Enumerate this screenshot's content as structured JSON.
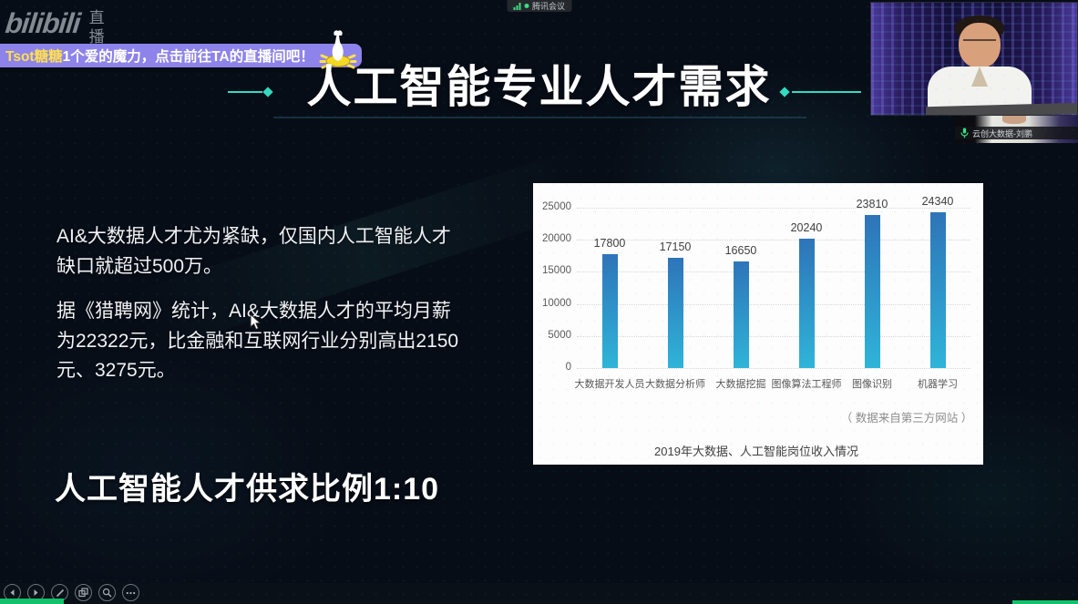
{
  "colors": {
    "accent_teal": "#35d9c0",
    "banner_purple": "#8d83ea",
    "banner_highlight_text": "#ffdf4f",
    "progress_green": "#12c26a",
    "meeting_green": "#3ddc84",
    "slide_background": "#070d17",
    "chart_background": "#fdfdfd"
  },
  "top_bar": {
    "meeting_label": "腾讯会议"
  },
  "bili": {
    "logo_text": "bilibili",
    "vertical_label_1": "直",
    "vertical_label_2": "播"
  },
  "banner": {
    "highlight": "Tsot糖糖",
    "message": "1个爱的魔力，点击前往TA的直播间吧！"
  },
  "slide": {
    "title": "人工智能专业人才需求",
    "paragraphs": [
      "AI&大数据人才尤为紧缺，仅国内人工智能人才缺口就超过500万。",
      "据《猎聘网》统计，AI&大数据人才的平均月薪为22322元，比金融和互联网行业分别高出2150元、3275元。"
    ],
    "footer": "人工智能人才供求比例1:10"
  },
  "chart_data": {
    "type": "bar",
    "categories": [
      "大数据开发人员",
      "大数据分析师",
      "大数据挖掘",
      "图像算法工程师",
      "图像识别",
      "机器学习"
    ],
    "values": [
      17800,
      17150,
      16650,
      20240,
      23810,
      24340
    ],
    "title": "2019年大数据、人工智能岗位收入情况",
    "source_note": "（ 数据来自第三方网站 ）",
    "xlabel": "",
    "ylabel": "",
    "yticks": [
      0,
      5000,
      10000,
      15000,
      20000,
      25000
    ],
    "ylim": [
      0,
      25000
    ],
    "grid": true,
    "legend": "none",
    "bar_color_top": "#2e74b8",
    "bar_color_bottom": "#2fb4d9"
  },
  "webcam": {
    "nametag": "云创大数据-刘鹏"
  },
  "icons": {
    "signal": "signal-bars-icon",
    "live_dot": "live-dot-icon",
    "duck": "duck-dive-icon",
    "microphone": "microphone-icon",
    "toolbar": [
      "prev-slide-icon",
      "next-slide-icon",
      "pen-icon",
      "slide-sorter-icon",
      "magnifier-icon",
      "ellipsis-icon"
    ]
  }
}
